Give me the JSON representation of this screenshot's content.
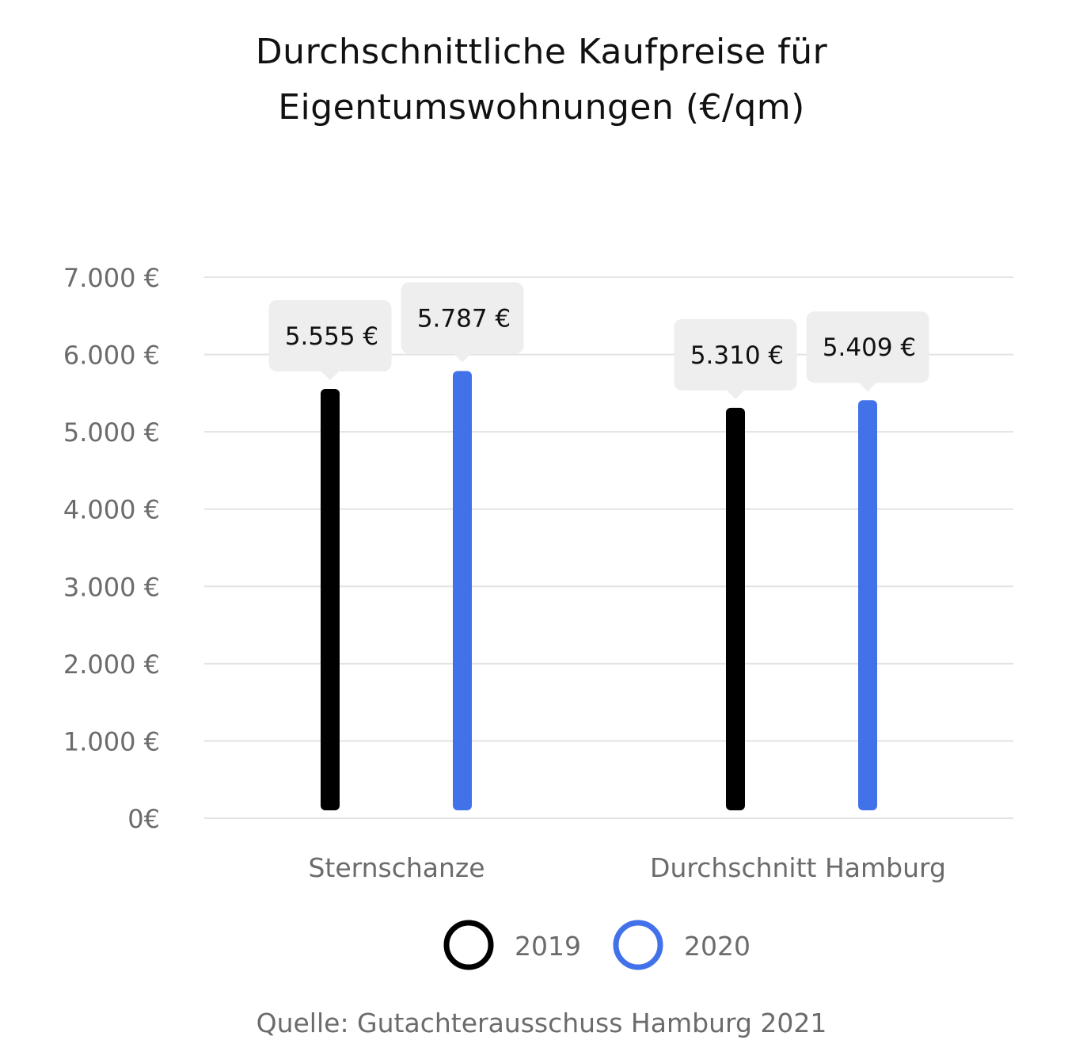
{
  "title_lines": [
    "Durchschnittliche Kaufpreise für",
    "Eigentumswohnungen (€/qm)"
  ],
  "source": "Quelle: Gutachterausschuss Hamburg 2021",
  "colors": {
    "series_2019": "#000000",
    "series_2020": "#4272ea",
    "grid": "#e3e3e3",
    "tick_text": "#6b6b6b",
    "label_box": "#eeeeee",
    "label_text": "#111111"
  },
  "chart_data": {
    "type": "bar",
    "title": "Durchschnittliche Kaufpreise für Eigentumswohnungen (€/qm)",
    "categories": [
      "Sternschanze",
      "Durchschnitt Hamburg"
    ],
    "series": [
      {
        "name": "2019",
        "values": [
          5555,
          5310
        ],
        "value_labels": [
          "5.555 €",
          "5.310 €"
        ]
      },
      {
        "name": "2020",
        "values": [
          5787,
          5409
        ],
        "value_labels": [
          "5.787 €",
          "5.409 €"
        ]
      }
    ],
    "ylim": [
      0,
      7000
    ],
    "yticks": [
      0,
      1000,
      2000,
      3000,
      4000,
      5000,
      6000,
      7000
    ],
    "ytick_labels": [
      "0€",
      "1.000 €",
      "2.000 €",
      "3.000 €",
      "4.000 €",
      "5.000 €",
      "6.000 €",
      "7.000 €"
    ],
    "grid": true,
    "legend_position": "bottom-center"
  }
}
